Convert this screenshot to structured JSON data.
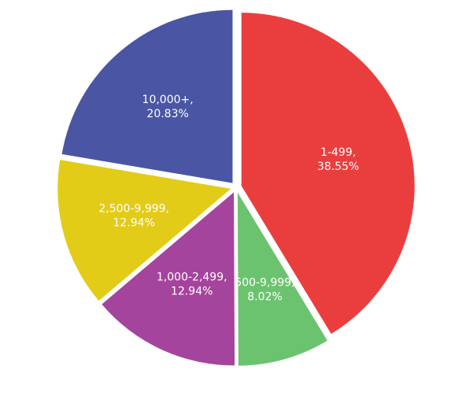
{
  "chart_data": {
    "type": "pie",
    "slices": [
      {
        "category": "1-499",
        "value": 38.55,
        "value_label": "38.55%",
        "color": "#ea3e3e",
        "exploded": true
      },
      {
        "category": "500-9,999",
        "value": 8.02,
        "value_label": "8.02%",
        "color": "#6cc36f",
        "exploded": true
      },
      {
        "category": "1,000-2,499",
        "value": 12.94,
        "value_label": "12.94%",
        "color": "#a5449c",
        "exploded": true
      },
      {
        "category": "2,500-9,999",
        "value": 12.94,
        "value_label": "12.94%",
        "color": "#e2cc18",
        "exploded": true
      },
      {
        "category": "10,000+",
        "value": 20.83,
        "value_label": "20.83%",
        "color": "#4a56a4",
        "exploded": true
      }
    ],
    "title": "",
    "legend": "none",
    "start_angle_deg": 0,
    "direction": "clockwise"
  }
}
